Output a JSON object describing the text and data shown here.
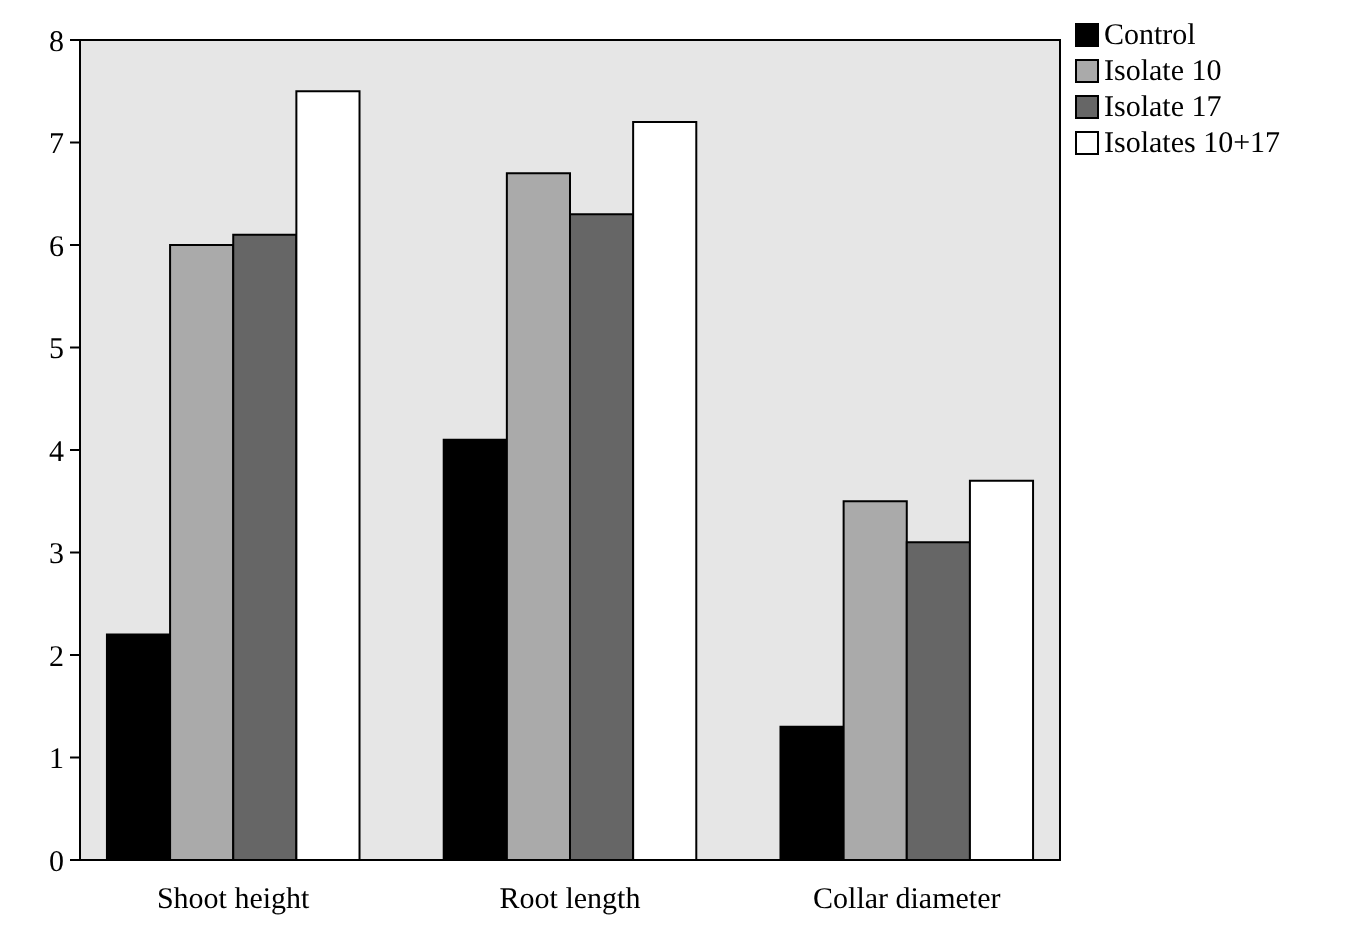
{
  "chart_data": {
    "type": "bar",
    "categories": [
      "Shoot height",
      "Root length",
      "Collar diameter"
    ],
    "series": [
      {
        "name": "Control",
        "color": "#000000",
        "values": [
          2.2,
          4.1,
          1.3
        ]
      },
      {
        "name": "Isolate 10",
        "color": "#aaaaaa",
        "values": [
          6.0,
          6.7,
          3.5
        ]
      },
      {
        "name": "Isolate 17",
        "color": "#666666",
        "values": [
          6.1,
          6.3,
          3.1
        ]
      },
      {
        "name": "Isolates 10+17",
        "color": "#ffffff",
        "values": [
          7.5,
          7.2,
          3.7
        ]
      }
    ],
    "ylim": [
      0,
      8
    ],
    "yticks": [
      0,
      1,
      2,
      3,
      4,
      5,
      6,
      7,
      8
    ],
    "legend": "top right"
  }
}
